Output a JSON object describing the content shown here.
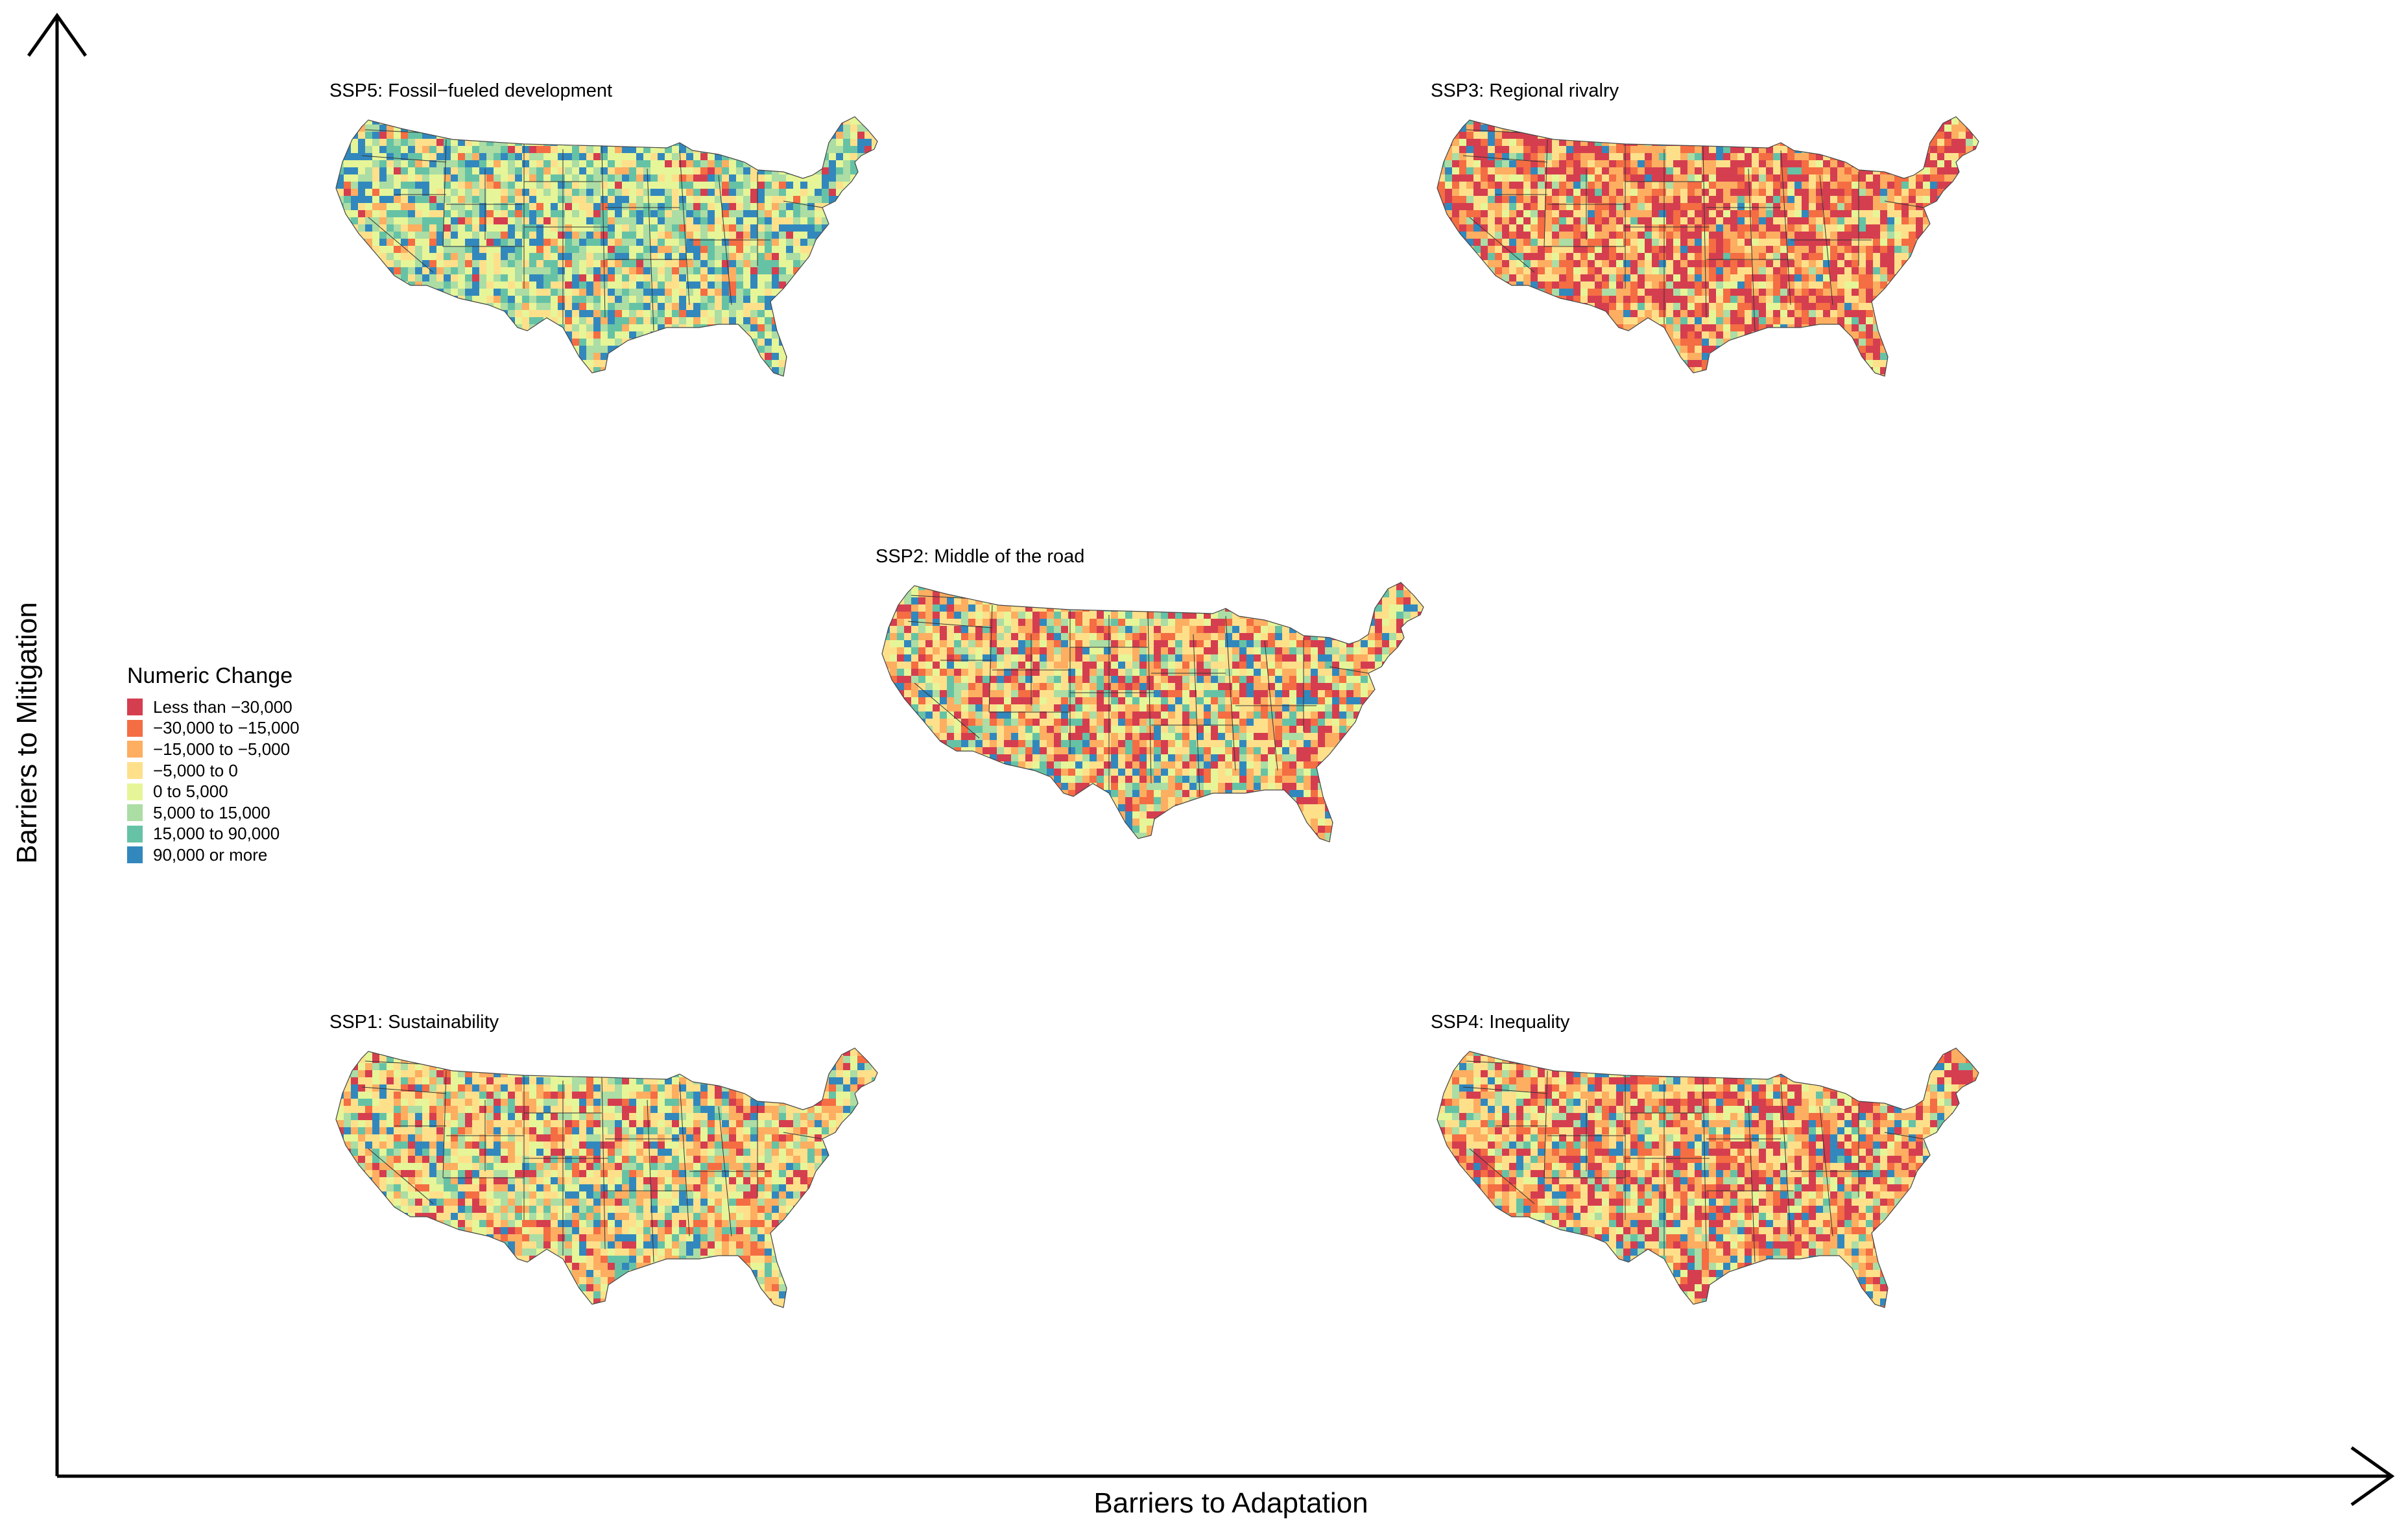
{
  "axes": {
    "x_label": "Barriers to Adaptation",
    "y_label": "Barriers to Mitigation"
  },
  "legend": {
    "title": "Numeric Change",
    "items": [
      {
        "label": "Less than −30,000",
        "color": "#d53e4f"
      },
      {
        "label": "−30,000 to −15,000",
        "color": "#f46d43"
      },
      {
        "label": "−15,000 to −5,000",
        "color": "#fdae61"
      },
      {
        "label": "−5,000 to 0",
        "color": "#fee08b"
      },
      {
        "label": "0 to 5,000",
        "color": "#e6f598"
      },
      {
        "label": "5,000 to 15,000",
        "color": "#abdda4"
      },
      {
        "label": "15,000 to 90,000",
        "color": "#66c2a5"
      },
      {
        "label": "90,000 or more",
        "color": "#3288bd"
      }
    ]
  },
  "panels": [
    {
      "id": "ssp5",
      "title": "SSP5: Fossil−fueled development",
      "weights": [
        0.03,
        0.03,
        0.07,
        0.15,
        0.22,
        0.18,
        0.15,
        0.17
      ]
    },
    {
      "id": "ssp3",
      "title": "SSP3: Regional rivalry",
      "weights": [
        0.3,
        0.15,
        0.2,
        0.18,
        0.06,
        0.04,
        0.03,
        0.04
      ]
    },
    {
      "id": "ssp2",
      "title": "SSP2: Middle of the road",
      "weights": [
        0.16,
        0.09,
        0.17,
        0.22,
        0.12,
        0.09,
        0.07,
        0.08
      ]
    },
    {
      "id": "ssp1",
      "title": "SSP1: Sustainability",
      "weights": [
        0.1,
        0.07,
        0.17,
        0.24,
        0.15,
        0.1,
        0.08,
        0.09
      ]
    },
    {
      "id": "ssp4",
      "title": "SSP4: Inequality",
      "weights": [
        0.22,
        0.12,
        0.2,
        0.2,
        0.08,
        0.06,
        0.05,
        0.07
      ]
    }
  ]
}
